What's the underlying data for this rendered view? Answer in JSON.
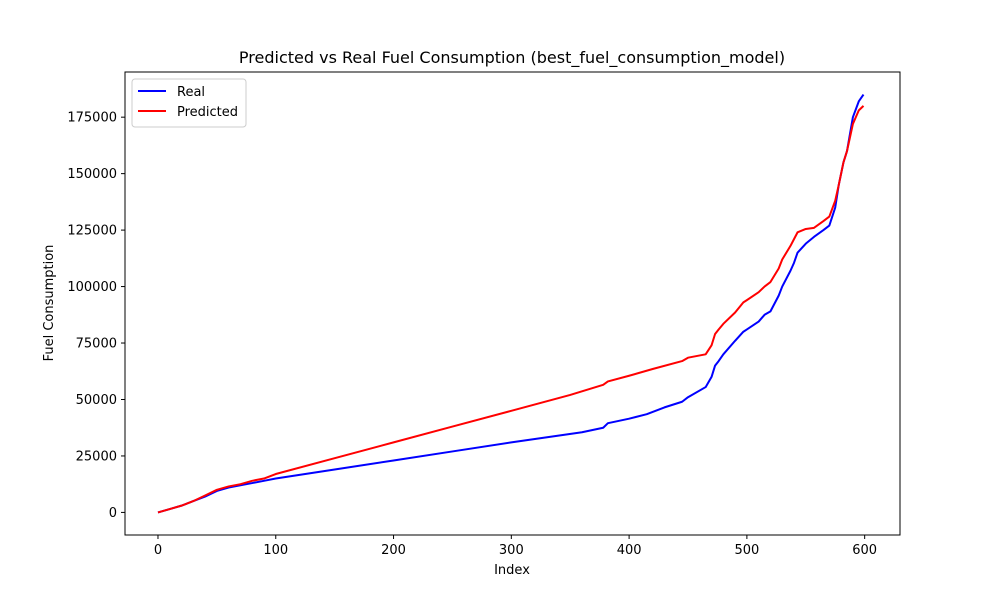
{
  "chart_data": {
    "type": "line",
    "title": "Predicted vs Real Fuel Consumption (best_fuel_consumption_model)",
    "xlabel": "Index",
    "ylabel": "Fuel Consumption",
    "xlim": [
      -28,
      630
    ],
    "ylim": [
      -10000,
      195000
    ],
    "xticks": [
      0,
      100,
      200,
      300,
      400,
      500,
      600
    ],
    "yticks": [
      0,
      25000,
      50000,
      75000,
      100000,
      125000,
      150000,
      175000
    ],
    "grid": false,
    "legend_position": "upper-left",
    "series": [
      {
        "name": "Real",
        "color": "#0000ff",
        "x": [
          0,
          10,
          20,
          30,
          40,
          50,
          60,
          70,
          80,
          90,
          100,
          150,
          200,
          250,
          300,
          360,
          378,
          382,
          400,
          415,
          430,
          445,
          450,
          465,
          470,
          473,
          476,
          480,
          490,
          497,
          500,
          510,
          515,
          520,
          527,
          530,
          537,
          540,
          543,
          550,
          557,
          565,
          570,
          575,
          578,
          582,
          585,
          590,
          595,
          599
        ],
        "values": [
          0,
          1500,
          3000,
          5000,
          7000,
          9500,
          11000,
          12000,
          13000,
          14000,
          15000,
          19000,
          23000,
          27000,
          31000,
          35500,
          37500,
          39500,
          41500,
          43500,
          46500,
          49000,
          51000,
          55500,
          60000,
          65000,
          67000,
          70000,
          76000,
          80000,
          81000,
          84500,
          87500,
          89000,
          96000,
          100000,
          107000,
          110500,
          115000,
          119000,
          122000,
          125000,
          127000,
          135000,
          145000,
          155000,
          160000,
          175000,
          182000,
          185000
        ]
      },
      {
        "name": "Predicted",
        "color": "#ff0000",
        "x": [
          0,
          10,
          20,
          30,
          40,
          50,
          60,
          70,
          80,
          90,
          100,
          150,
          200,
          250,
          300,
          350,
          378,
          382,
          400,
          420,
          445,
          450,
          465,
          470,
          473,
          476,
          480,
          490,
          497,
          500,
          510,
          515,
          520,
          527,
          530,
          537,
          540,
          543,
          550,
          557,
          565,
          570,
          575,
          578,
          582,
          585,
          590,
          595,
          599
        ],
        "values": [
          0,
          1500,
          3000,
          5000,
          7500,
          10000,
          11500,
          12500,
          14000,
          15000,
          17000,
          24000,
          31000,
          38000,
          45000,
          52000,
          56500,
          58000,
          60500,
          63500,
          67000,
          68500,
          70000,
          74000,
          79000,
          81000,
          83500,
          88500,
          93000,
          94000,
          97500,
          100000,
          102000,
          108000,
          112000,
          118000,
          121000,
          124000,
          125500,
          126000,
          129000,
          131000,
          138000,
          145000,
          155000,
          160000,
          172000,
          178000,
          180000
        ]
      }
    ]
  }
}
